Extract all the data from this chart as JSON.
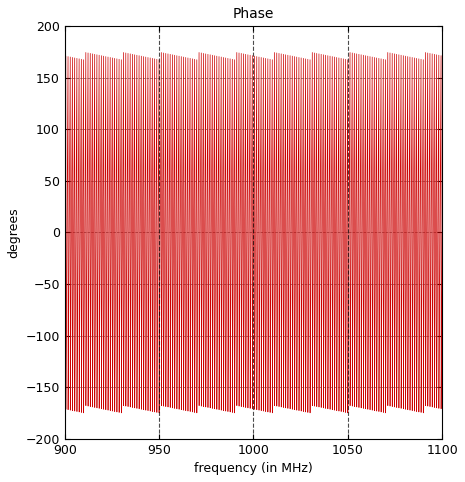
{
  "title": "Phase",
  "xlabel": "frequency (in MHz)",
  "ylabel": "degrees",
  "xlim": [
    900,
    1100
  ],
  "ylim": [
    -200,
    200
  ],
  "xticks": [
    900,
    950,
    1000,
    1050,
    1100
  ],
  "yticks": [
    -200,
    -150,
    -100,
    -50,
    0,
    50,
    100,
    150,
    200
  ],
  "vlines": [
    950,
    1000,
    1050
  ],
  "line_color": "#cc0000",
  "vline_color": "#000000",
  "grid_color": "#000000",
  "bg_color": "#ffffff",
  "freq_start": 900,
  "freq_end": 1100,
  "num_points": 8001,
  "phase_cycles_per_mhz": 0.85,
  "phase_amplitude": 175,
  "figsize": [
    4.65,
    4.82
  ],
  "dpi": 100,
  "title_fontsize": 10,
  "label_fontsize": 9,
  "tick_fontsize": 9
}
